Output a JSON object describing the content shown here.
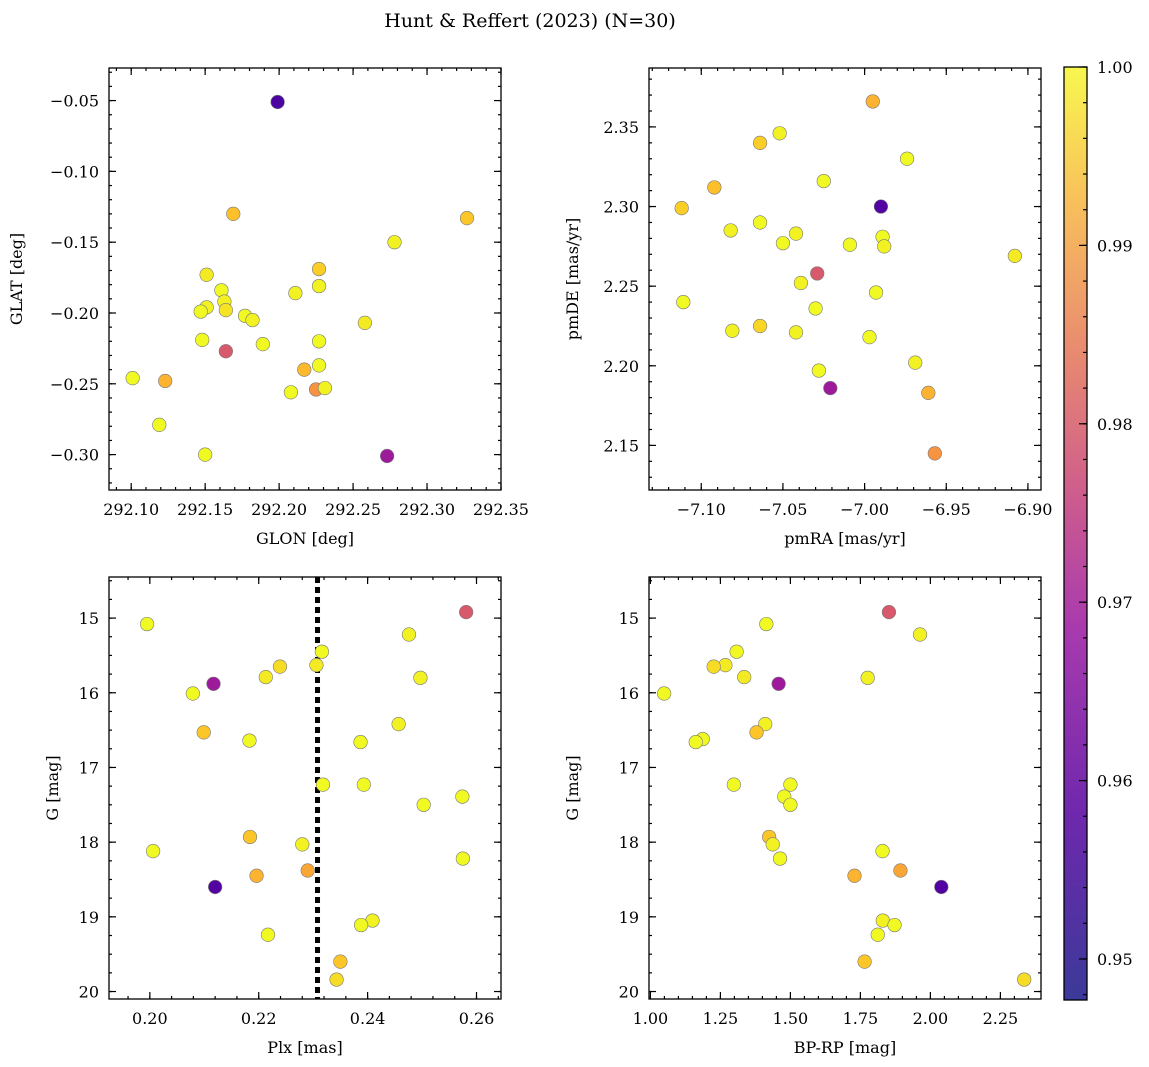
{
  "figure": {
    "title": "Hunt & Reffert (2023) (N=30)"
  },
  "colorbar": {
    "colormap": "plasma",
    "vmin": 0.9477,
    "vmax": 1.0,
    "ticks": [
      0.95,
      0.96,
      0.97,
      0.98,
      0.99,
      1.0
    ],
    "tick_labels": [
      "0.95",
      "0.96",
      "0.97",
      "0.98",
      "0.99",
      "1.00"
    ]
  },
  "chart_data": [
    {
      "type": "scatter",
      "xlabel": "GLON [deg]",
      "ylabel": "GLAT [deg]",
      "xlim": [
        292.085,
        292.35
      ],
      "ylim": [
        -0.325,
        -0.027
      ],
      "y_inverted": false,
      "xticks": [
        292.1,
        292.15,
        292.2,
        292.25,
        292.3,
        292.35
      ],
      "xtick_labels": [
        "292.10",
        "292.15",
        "292.20",
        "292.25",
        "292.30",
        "292.35"
      ],
      "yticks": [
        -0.3,
        -0.25,
        -0.2,
        -0.15,
        -0.1,
        -0.05
      ],
      "ytick_labels": [
        "−0.30",
        "−0.25",
        "−0.20",
        "−0.15",
        "−0.10",
        "−0.05"
      ],
      "points": [
        {
          "x": 292.199,
          "y": -0.051,
          "c": 0.948
        },
        {
          "x": 292.169,
          "y": -0.13,
          "c": 0.992
        },
        {
          "x": 292.327,
          "y": -0.133,
          "c": 0.993
        },
        {
          "x": 292.278,
          "y": -0.15,
          "c": 0.999
        },
        {
          "x": 292.227,
          "y": -0.169,
          "c": 0.994
        },
        {
          "x": 292.151,
          "y": -0.173,
          "c": 0.998
        },
        {
          "x": 292.211,
          "y": -0.186,
          "c": 0.999
        },
        {
          "x": 292.227,
          "y": -0.181,
          "c": 0.999
        },
        {
          "x": 292.161,
          "y": -0.184,
          "c": 1.0
        },
        {
          "x": 292.163,
          "y": -0.192,
          "c": 0.999
        },
        {
          "x": 292.151,
          "y": -0.196,
          "c": 0.999
        },
        {
          "x": 292.147,
          "y": -0.199,
          "c": 1.0
        },
        {
          "x": 292.164,
          "y": -0.198,
          "c": 0.997
        },
        {
          "x": 292.177,
          "y": -0.202,
          "c": 1.0
        },
        {
          "x": 292.182,
          "y": -0.205,
          "c": 0.999
        },
        {
          "x": 292.258,
          "y": -0.207,
          "c": 0.998
        },
        {
          "x": 292.148,
          "y": -0.219,
          "c": 1.0
        },
        {
          "x": 292.227,
          "y": -0.22,
          "c": 1.0
        },
        {
          "x": 292.189,
          "y": -0.222,
          "c": 1.0
        },
        {
          "x": 292.164,
          "y": -0.227,
          "c": 0.974
        },
        {
          "x": 292.227,
          "y": -0.237,
          "c": 1.0
        },
        {
          "x": 292.217,
          "y": -0.24,
          "c": 0.991
        },
        {
          "x": 292.101,
          "y": -0.246,
          "c": 1.0
        },
        {
          "x": 292.123,
          "y": -0.248,
          "c": 0.99
        },
        {
          "x": 292.225,
          "y": -0.254,
          "c": 0.985
        },
        {
          "x": 292.231,
          "y": -0.253,
          "c": 0.999
        },
        {
          "x": 292.208,
          "y": -0.256,
          "c": 1.0
        },
        {
          "x": 292.119,
          "y": -0.279,
          "c": 1.0
        },
        {
          "x": 292.15,
          "y": -0.3,
          "c": 1.0
        },
        {
          "x": 292.273,
          "y": -0.301,
          "c": 0.961
        }
      ]
    },
    {
      "type": "scatter",
      "xlabel": "pmRA [mas/yr]",
      "ylabel": "pmDE [mas/yr]",
      "xlim": [
        -7.132,
        -6.892
      ],
      "ylim": [
        2.122,
        2.387
      ],
      "y_inverted": false,
      "xticks": [
        -7.1,
        -7.05,
        -7.0,
        -6.95,
        -6.9
      ],
      "xtick_labels": [
        "−7.10",
        "−7.05",
        "−7.00",
        "−6.95",
        "−6.90"
      ],
      "yticks": [
        2.15,
        2.2,
        2.25,
        2.3,
        2.35
      ],
      "ytick_labels": [
        "2.15",
        "2.20",
        "2.25",
        "2.30",
        "2.35"
      ],
      "points": [
        {
          "x": -6.995,
          "y": 2.366,
          "c": 0.99
        },
        {
          "x": -7.052,
          "y": 2.346,
          "c": 0.999
        },
        {
          "x": -7.064,
          "y": 2.34,
          "c": 0.994
        },
        {
          "x": -6.974,
          "y": 2.33,
          "c": 1.0
        },
        {
          "x": -7.025,
          "y": 2.316,
          "c": 1.0
        },
        {
          "x": -7.092,
          "y": 2.312,
          "c": 0.992
        },
        {
          "x": -6.99,
          "y": 2.3,
          "c": 0.949
        },
        {
          "x": -7.112,
          "y": 2.299,
          "c": 0.994
        },
        {
          "x": -7.064,
          "y": 2.29,
          "c": 1.0
        },
        {
          "x": -7.082,
          "y": 2.285,
          "c": 0.999
        },
        {
          "x": -7.042,
          "y": 2.283,
          "c": 0.999
        },
        {
          "x": -6.989,
          "y": 2.281,
          "c": 1.0
        },
        {
          "x": -7.05,
          "y": 2.277,
          "c": 1.0
        },
        {
          "x": -7.009,
          "y": 2.276,
          "c": 1.0
        },
        {
          "x": -6.988,
          "y": 2.275,
          "c": 0.999
        },
        {
          "x": -6.908,
          "y": 2.269,
          "c": 0.998
        },
        {
          "x": -7.029,
          "y": 2.258,
          "c": 0.974
        },
        {
          "x": -7.039,
          "y": 2.252,
          "c": 0.999
        },
        {
          "x": -6.993,
          "y": 2.246,
          "c": 1.0
        },
        {
          "x": -7.111,
          "y": 2.24,
          "c": 1.0
        },
        {
          "x": -7.03,
          "y": 2.236,
          "c": 1.0
        },
        {
          "x": -7.064,
          "y": 2.225,
          "c": 0.995
        },
        {
          "x": -7.081,
          "y": 2.222,
          "c": 0.999
        },
        {
          "x": -7.042,
          "y": 2.221,
          "c": 0.999
        },
        {
          "x": -6.997,
          "y": 2.218,
          "c": 1.0
        },
        {
          "x": -6.969,
          "y": 2.202,
          "c": 0.999
        },
        {
          "x": -7.028,
          "y": 2.197,
          "c": 1.0
        },
        {
          "x": -7.021,
          "y": 2.186,
          "c": 0.961
        },
        {
          "x": -6.961,
          "y": 2.183,
          "c": 0.99
        },
        {
          "x": -6.957,
          "y": 2.145,
          "c": 0.985
        }
      ]
    },
    {
      "type": "scatter",
      "xlabel": "Plx [mas]",
      "ylabel": "G [mag]",
      "xlim": [
        0.1925,
        0.2645
      ],
      "ylim": [
        14.45,
        20.1
      ],
      "y_inverted": true,
      "vline": {
        "x": 0.2308,
        "style": "dotted"
      },
      "xticks": [
        0.2,
        0.22,
        0.24,
        0.26
      ],
      "xtick_labels": [
        "0.20",
        "0.22",
        "0.24",
        "0.26"
      ],
      "yticks": [
        15,
        16,
        17,
        18,
        19,
        20
      ],
      "ytick_labels": [
        "15",
        "16",
        "17",
        "18",
        "19",
        "20"
      ],
      "points": [
        {
          "x": 0.2581,
          "y": 14.92,
          "c": 0.974
        },
        {
          "x": 0.1995,
          "y": 15.08,
          "c": 1.0
        },
        {
          "x": 0.2476,
          "y": 15.22,
          "c": 0.999
        },
        {
          "x": 0.2316,
          "y": 15.45,
          "c": 1.0
        },
        {
          "x": 0.2306,
          "y": 15.63,
          "c": 0.998
        },
        {
          "x": 0.2239,
          "y": 15.65,
          "c": 0.996
        },
        {
          "x": 0.2213,
          "y": 15.79,
          "c": 0.998
        },
        {
          "x": 0.2497,
          "y": 15.8,
          "c": 0.999
        },
        {
          "x": 0.2117,
          "y": 15.88,
          "c": 0.961
        },
        {
          "x": 0.2079,
          "y": 16.01,
          "c": 1.0
        },
        {
          "x": 0.2457,
          "y": 16.42,
          "c": 0.999
        },
        {
          "x": 0.2099,
          "y": 16.53,
          "c": 0.993
        },
        {
          "x": 0.2183,
          "y": 16.64,
          "c": 1.0
        },
        {
          "x": 0.2387,
          "y": 16.66,
          "c": 1.0
        },
        {
          "x": 0.2318,
          "y": 17.23,
          "c": 1.0
        },
        {
          "x": 0.2393,
          "y": 17.23,
          "c": 1.0
        },
        {
          "x": 0.2574,
          "y": 17.39,
          "c": 1.0
        },
        {
          "x": 0.2503,
          "y": 17.5,
          "c": 1.0
        },
        {
          "x": 0.2184,
          "y": 17.93,
          "c": 0.993
        },
        {
          "x": 0.228,
          "y": 18.03,
          "c": 0.999
        },
        {
          "x": 0.2006,
          "y": 18.12,
          "c": 1.0
        },
        {
          "x": 0.2575,
          "y": 18.22,
          "c": 1.0
        },
        {
          "x": 0.229,
          "y": 18.38,
          "c": 0.988
        },
        {
          "x": 0.2196,
          "y": 18.45,
          "c": 0.99
        },
        {
          "x": 0.212,
          "y": 18.6,
          "c": 0.949
        },
        {
          "x": 0.2409,
          "y": 19.05,
          "c": 0.999
        },
        {
          "x": 0.2388,
          "y": 19.11,
          "c": 1.0
        },
        {
          "x": 0.2217,
          "y": 19.24,
          "c": 1.0
        },
        {
          "x": 0.235,
          "y": 19.6,
          "c": 0.993
        },
        {
          "x": 0.2343,
          "y": 19.84,
          "c": 0.996
        }
      ]
    },
    {
      "type": "scatter",
      "xlabel": "BP-RP [mag]",
      "ylabel": "G [mag]",
      "xlim": [
        0.995,
        2.395
      ],
      "ylim": [
        14.45,
        20.1
      ],
      "y_inverted": true,
      "xticks": [
        1.0,
        1.25,
        1.5,
        1.75,
        2.0,
        2.25
      ],
      "xtick_labels": [
        "1.00",
        "1.25",
        "1.50",
        "1.75",
        "2.00",
        "2.25"
      ],
      "yticks": [
        15,
        16,
        17,
        18,
        19,
        20
      ],
      "ytick_labels": [
        "15",
        "16",
        "17",
        "18",
        "19",
        "20"
      ],
      "points": [
        {
          "x": 1.852,
          "y": 14.92,
          "c": 0.974
        },
        {
          "x": 1.414,
          "y": 15.08,
          "c": 1.0
        },
        {
          "x": 1.963,
          "y": 15.22,
          "c": 0.999
        },
        {
          "x": 1.308,
          "y": 15.45,
          "c": 1.0
        },
        {
          "x": 1.268,
          "y": 15.63,
          "c": 0.998
        },
        {
          "x": 1.226,
          "y": 15.65,
          "c": 0.996
        },
        {
          "x": 1.335,
          "y": 15.79,
          "c": 0.998
        },
        {
          "x": 1.776,
          "y": 15.8,
          "c": 0.999
        },
        {
          "x": 1.458,
          "y": 15.88,
          "c": 0.961
        },
        {
          "x": 1.049,
          "y": 16.01,
          "c": 1.0
        },
        {
          "x": 1.41,
          "y": 16.42,
          "c": 0.999
        },
        {
          "x": 1.379,
          "y": 16.53,
          "c": 0.993
        },
        {
          "x": 1.187,
          "y": 16.62,
          "c": 1.0
        },
        {
          "x": 1.162,
          "y": 16.66,
          "c": 1.0
        },
        {
          "x": 1.298,
          "y": 17.23,
          "c": 1.0
        },
        {
          "x": 1.5,
          "y": 17.23,
          "c": 1.0
        },
        {
          "x": 1.478,
          "y": 17.39,
          "c": 1.0
        },
        {
          "x": 1.5,
          "y": 17.5,
          "c": 1.0
        },
        {
          "x": 1.424,
          "y": 17.93,
          "c": 0.993
        },
        {
          "x": 1.437,
          "y": 18.03,
          "c": 0.999
        },
        {
          "x": 1.829,
          "y": 18.12,
          "c": 1.0
        },
        {
          "x": 1.463,
          "y": 18.22,
          "c": 1.0
        },
        {
          "x": 1.893,
          "y": 18.38,
          "c": 0.988
        },
        {
          "x": 1.729,
          "y": 18.45,
          "c": 0.99
        },
        {
          "x": 2.039,
          "y": 18.6,
          "c": 0.949
        },
        {
          "x": 1.83,
          "y": 19.05,
          "c": 0.999
        },
        {
          "x": 1.872,
          "y": 19.11,
          "c": 1.0
        },
        {
          "x": 1.812,
          "y": 19.24,
          "c": 1.0
        },
        {
          "x": 1.765,
          "y": 19.6,
          "c": 0.993
        },
        {
          "x": 2.335,
          "y": 19.84,
          "c": 0.996
        }
      ]
    }
  ]
}
